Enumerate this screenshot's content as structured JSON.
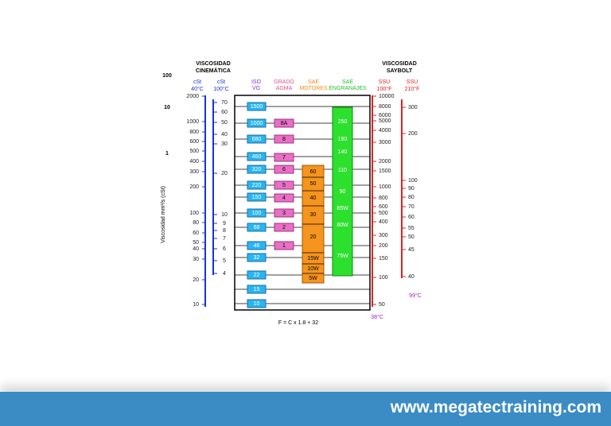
{
  "header": {
    "left_title": [
      "VISCOSIDAD",
      "CINEMÁTICA"
    ],
    "right_title": [
      "VISCOSIDAD",
      "SAYBOLT"
    ]
  },
  "mm_scale": {
    "axis_label": "Viscosidad mm²/s (cSt)",
    "labels": [
      "100",
      "10",
      "1"
    ]
  },
  "axis_40c": {
    "unit": "cSt",
    "temp": "40°C",
    "labels": [
      "2000",
      "1000",
      "800",
      "600",
      "500",
      "400",
      "300",
      "200",
      "100",
      "80",
      "60",
      "50",
      "40",
      "30",
      "20",
      "10"
    ]
  },
  "axis_100c": {
    "unit": "cSt",
    "temp": "100°C",
    "labels": [
      "70",
      "60",
      "50",
      "40",
      "30",
      "20",
      "10",
      "9",
      "8",
      "7",
      "6",
      "5",
      "4"
    ]
  },
  "iso_vg": {
    "title": [
      "ISO",
      "VG"
    ],
    "grades": [
      "1500",
      "1000",
      "680",
      "460",
      "320",
      "220",
      "150",
      "100",
      "68",
      "46",
      "32",
      "22",
      "15",
      "10"
    ]
  },
  "agma": {
    "title": [
      "GRADO",
      "AGMA"
    ],
    "grades": [
      "8A",
      "8",
      "7",
      "6",
      "5",
      "4",
      "3",
      "2",
      "1"
    ]
  },
  "sae_motor": {
    "title": [
      "SAE",
      "MOTORES"
    ],
    "grades": [
      "60",
      "50",
      "40",
      "30",
      "20",
      "15W",
      "10W",
      "5W"
    ]
  },
  "sae_gear": {
    "title": [
      "SAE",
      "ENGRANAJES"
    ],
    "grades": [
      "250",
      "190",
      "140",
      "110",
      "90",
      "85W",
      "80W",
      "75W"
    ]
  },
  "ssu_100f": {
    "unit": "SSU",
    "temp": "100°F",
    "note": "38°C",
    "labels": [
      "10000",
      "8000",
      "6000",
      "5000",
      "4000",
      "3000",
      "2000",
      "1500",
      "1000",
      "800",
      "600",
      "500",
      "400",
      "300",
      "200",
      "150",
      "100",
      "50"
    ]
  },
  "ssu_210f": {
    "unit": "SSU",
    "temp": "210°F",
    "note": "99°C",
    "labels": [
      "300",
      "200",
      "100",
      "90",
      "80",
      "70",
      "60",
      "55",
      "50",
      "45",
      "40"
    ]
  },
  "formula": "F = C x 1.8 + 32",
  "footer": {
    "url": "www.megatectraining.com"
  }
}
